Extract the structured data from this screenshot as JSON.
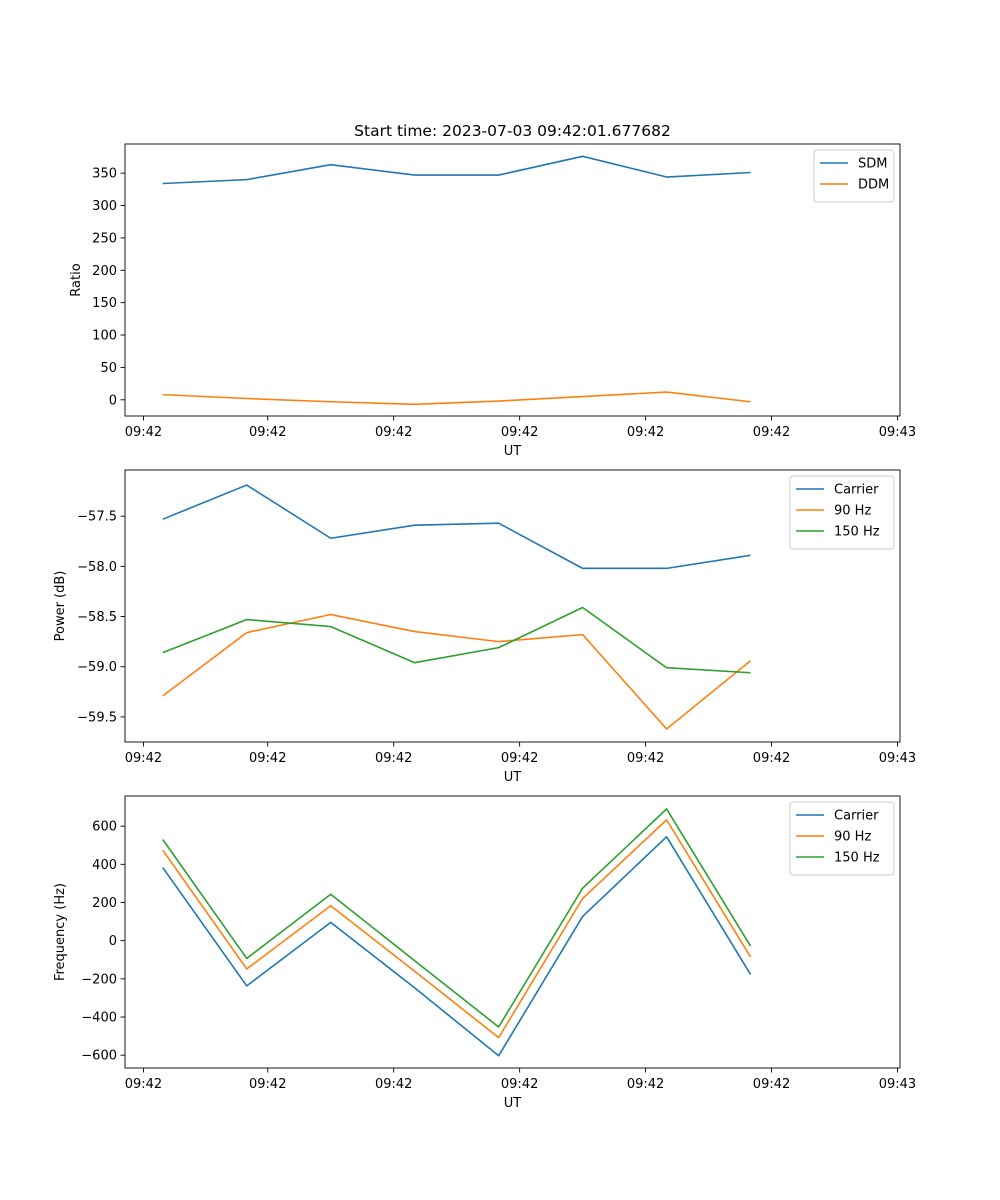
{
  "figure_title": "Start time: 2023-07-03 09:42:01.677682",
  "colors": {
    "blue": "#1f77b4",
    "orange": "#ff7f0e",
    "green": "#2ca02c"
  },
  "chart_data": [
    {
      "type": "line",
      "xlabel": "UT",
      "ylabel": "Ratio",
      "xlim": [
        -0.45,
        8.78
      ],
      "ylim": [
        -25,
        395
      ],
      "x": [
        0,
        1,
        2,
        3,
        4,
        5,
        6,
        7
      ],
      "xticks": [
        {
          "x": -0.23,
          "label": "09:42"
        },
        {
          "x": 1.25,
          "label": "09:42"
        },
        {
          "x": 2.75,
          "label": "09:42"
        },
        {
          "x": 4.25,
          "label": "09:42"
        },
        {
          "x": 5.75,
          "label": "09:42"
        },
        {
          "x": 7.25,
          "label": "09:42"
        },
        {
          "x": 8.75,
          "label": "09:43"
        }
      ],
      "yticks": [
        {
          "v": 0,
          "label": "0"
        },
        {
          "v": 50,
          "label": "50"
        },
        {
          "v": 100,
          "label": "100"
        },
        {
          "v": 150,
          "label": "150"
        },
        {
          "v": 200,
          "label": "200"
        },
        {
          "v": 250,
          "label": "250"
        },
        {
          "v": 300,
          "label": "300"
        },
        {
          "v": 350,
          "label": "350"
        }
      ],
      "legend": "top-right",
      "series": [
        {
          "name": "SDM",
          "color": "#1f77b4",
          "values": [
            334,
            340,
            363,
            347,
            347,
            376,
            344,
            351
          ]
        },
        {
          "name": "DDM",
          "color": "#ff7f0e",
          "values": [
            8,
            2,
            -3,
            -7,
            -2,
            5,
            12,
            -3
          ]
        }
      ]
    },
    {
      "type": "line",
      "xlabel": "UT",
      "ylabel": "Power (dB)",
      "xlim": [
        -0.45,
        8.78
      ],
      "ylim": [
        -59.75,
        -57.04
      ],
      "x": [
        0,
        1,
        2,
        3,
        4,
        5,
        6,
        7
      ],
      "xticks": [
        {
          "x": -0.23,
          "label": "09:42"
        },
        {
          "x": 1.25,
          "label": "09:42"
        },
        {
          "x": 2.75,
          "label": "09:42"
        },
        {
          "x": 4.25,
          "label": "09:42"
        },
        {
          "x": 5.75,
          "label": "09:42"
        },
        {
          "x": 7.25,
          "label": "09:42"
        },
        {
          "x": 8.75,
          "label": "09:43"
        }
      ],
      "yticks": [
        {
          "v": -59.5,
          "label": "−59.5"
        },
        {
          "v": -59.0,
          "label": "−59.0"
        },
        {
          "v": -58.5,
          "label": "−58.5"
        },
        {
          "v": -58.0,
          "label": "−58.0"
        },
        {
          "v": -57.5,
          "label": "−57.5"
        }
      ],
      "legend": "top-right",
      "series": [
        {
          "name": "Carrier",
          "color": "#1f77b4",
          "values": [
            -57.53,
            -57.19,
            -57.72,
            -57.59,
            -57.57,
            -58.02,
            -58.02,
            -57.89
          ]
        },
        {
          "name": "90 Hz",
          "color": "#ff7f0e",
          "values": [
            -59.29,
            -58.66,
            -58.48,
            -58.65,
            -58.75,
            -58.68,
            -59.62,
            -58.94
          ]
        },
        {
          "name": "150 Hz",
          "color": "#2ca02c",
          "values": [
            -58.86,
            -58.53,
            -58.6,
            -58.96,
            -58.81,
            -58.41,
            -59.01,
            -59.06
          ]
        }
      ]
    },
    {
      "type": "line",
      "xlabel": "UT",
      "ylabel": "Frequency (Hz)",
      "xlim": [
        -0.45,
        8.78
      ],
      "ylim": [
        -667,
        758
      ],
      "x": [
        0,
        1,
        2,
        3,
        4,
        5,
        6,
        7
      ],
      "xticks": [
        {
          "x": -0.23,
          "label": "09:42"
        },
        {
          "x": 1.25,
          "label": "09:42"
        },
        {
          "x": 2.75,
          "label": "09:42"
        },
        {
          "x": 4.25,
          "label": "09:42"
        },
        {
          "x": 5.75,
          "label": "09:42"
        },
        {
          "x": 7.25,
          "label": "09:42"
        },
        {
          "x": 8.75,
          "label": "09:43"
        }
      ],
      "yticks": [
        {
          "v": -600,
          "label": "−600"
        },
        {
          "v": -400,
          "label": "−400"
        },
        {
          "v": -200,
          "label": "−200"
        },
        {
          "v": 0,
          "label": "0"
        },
        {
          "v": 200,
          "label": "200"
        },
        {
          "v": 400,
          "label": "400"
        },
        {
          "v": 600,
          "label": "600"
        }
      ],
      "legend": "top-right",
      "series": [
        {
          "name": "Carrier",
          "color": "#1f77b4",
          "values": [
            383,
            -237,
            96,
            -247,
            -603,
            127,
            544,
            -177
          ]
        },
        {
          "name": "90 Hz",
          "color": "#ff7f0e",
          "values": [
            474,
            -148,
            183,
            -160,
            -508,
            221,
            633,
            -85
          ]
        },
        {
          "name": "150 Hz",
          "color": "#2ca02c",
          "values": [
            530,
            -93,
            243,
            -105,
            -452,
            275,
            690,
            -28
          ]
        }
      ]
    }
  ]
}
